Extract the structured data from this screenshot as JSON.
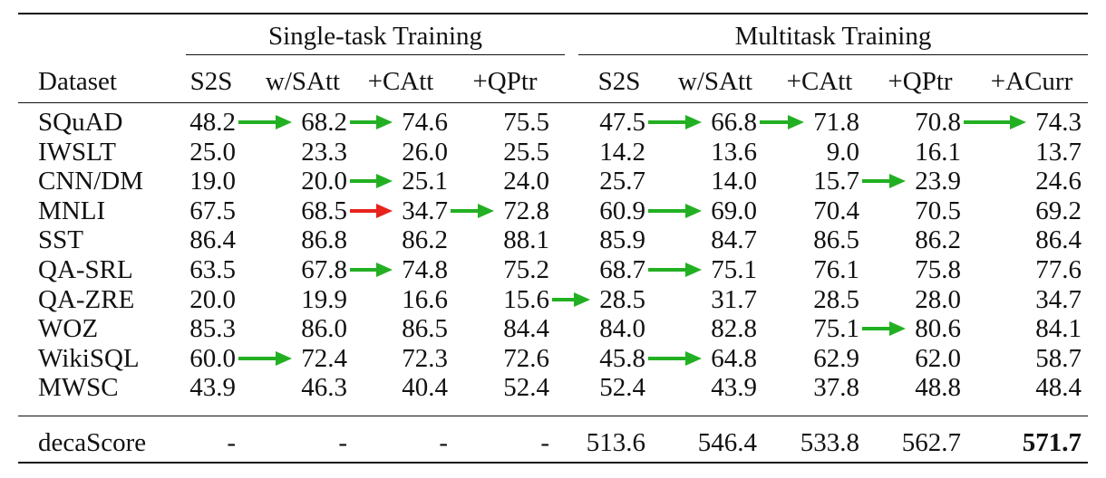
{
  "group_headers": [
    "Single-task Training",
    "Multitask Training"
  ],
  "column_headers": [
    "Dataset",
    "S2S",
    "w/SAtt",
    "+CAtt",
    "+QPtr",
    "S2S",
    "w/SAtt",
    "+CAtt",
    "+QPtr",
    "+ACurr"
  ],
  "rows": [
    {
      "dataset": "SQuAD",
      "values": [
        "48.2",
        "68.2",
        "74.6",
        "75.5",
        "47.5",
        "66.8",
        "71.8",
        "70.8",
        "74.3"
      ]
    },
    {
      "dataset": "IWSLT",
      "values": [
        "25.0",
        "23.3",
        "26.0",
        "25.5",
        "14.2",
        "13.6",
        "9.0",
        "16.1",
        "13.7"
      ]
    },
    {
      "dataset": "CNN/DM",
      "values": [
        "19.0",
        "20.0",
        "25.1",
        "24.0",
        "25.7",
        "14.0",
        "15.7",
        "23.9",
        "24.6"
      ]
    },
    {
      "dataset": "MNLI",
      "values": [
        "67.5",
        "68.5",
        "34.7",
        "72.8",
        "60.9",
        "69.0",
        "70.4",
        "70.5",
        "69.2"
      ]
    },
    {
      "dataset": "SST",
      "values": [
        "86.4",
        "86.8",
        "86.2",
        "88.1",
        "85.9",
        "84.7",
        "86.5",
        "86.2",
        "86.4"
      ]
    },
    {
      "dataset": "QA-SRL",
      "values": [
        "63.5",
        "67.8",
        "74.8",
        "75.2",
        "68.7",
        "75.1",
        "76.1",
        "75.8",
        "77.6"
      ]
    },
    {
      "dataset": "QA-ZRE",
      "values": [
        "20.0",
        "19.9",
        "16.6",
        "15.6",
        "28.5",
        "31.7",
        "28.5",
        "28.0",
        "34.7"
      ]
    },
    {
      "dataset": "WOZ",
      "values": [
        "85.3",
        "86.0",
        "86.5",
        "84.4",
        "84.0",
        "82.8",
        "75.1",
        "80.6",
        "84.1"
      ]
    },
    {
      "dataset": "WikiSQL",
      "values": [
        "60.0",
        "72.4",
        "72.3",
        "72.6",
        "45.8",
        "64.8",
        "62.9",
        "62.0",
        "58.7"
      ]
    },
    {
      "dataset": "MWSC",
      "values": [
        "43.9",
        "46.3",
        "40.4",
        "52.4",
        "52.4",
        "43.9",
        "37.8",
        "48.8",
        "48.4"
      ]
    }
  ],
  "summary": {
    "label": "decaScore",
    "values": [
      "-",
      "-",
      "-",
      "-",
      "513.6",
      "546.4",
      "533.8",
      "562.7",
      "571.7"
    ],
    "bold_index": 8
  },
  "arrows": [
    {
      "row": 0,
      "from": 0,
      "to": 1,
      "color": "#22b022"
    },
    {
      "row": 0,
      "from": 1,
      "to": 2,
      "color": "#22b022"
    },
    {
      "row": 0,
      "from": 4,
      "to": 5,
      "color": "#22b022"
    },
    {
      "row": 0,
      "from": 5,
      "to": 6,
      "color": "#22b022"
    },
    {
      "row": 0,
      "from": 7,
      "to": 8,
      "color": "#22b022"
    },
    {
      "row": 2,
      "from": 1,
      "to": 2,
      "color": "#22b022"
    },
    {
      "row": 2,
      "from": 6,
      "to": 7,
      "color": "#22b022"
    },
    {
      "row": 3,
      "from": 1,
      "to": 2,
      "color": "#e8221c"
    },
    {
      "row": 3,
      "from": 2,
      "to": 3,
      "color": "#22b022"
    },
    {
      "row": 3,
      "from": 4,
      "to": 5,
      "color": "#22b022"
    },
    {
      "row": 5,
      "from": 1,
      "to": 2,
      "color": "#22b022"
    },
    {
      "row": 5,
      "from": 4,
      "to": 5,
      "color": "#22b022"
    },
    {
      "row": 6,
      "from": 3,
      "to": 4,
      "color": "#22b022"
    },
    {
      "row": 7,
      "from": 6,
      "to": 7,
      "color": "#22b022"
    },
    {
      "row": 8,
      "from": 0,
      "to": 1,
      "color": "#22b022"
    },
    {
      "row": 8,
      "from": 4,
      "to": 5,
      "color": "#22b022"
    }
  ]
}
